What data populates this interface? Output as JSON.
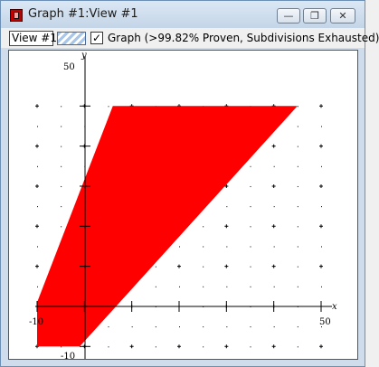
{
  "window": {
    "title": "Graph #1:View #1",
    "minimize_glyph": "—",
    "restore_glyph": "❐",
    "close_glyph": "✕"
  },
  "toolbar": {
    "view_name": "View #1",
    "graph_checked_glyph": "✓",
    "graph_label": "Graph (>99.82% Proven, Subdivisions Exhausted)"
  },
  "graph": {
    "fill_color": "#ff0000",
    "x_axis_label": "x",
    "y_axis_label": "y",
    "x_min_label": "-10",
    "x_max_label": "50",
    "y_max_label": "50",
    "y_min_label": "-10",
    "region_polygon": [
      [
        -10,
        -10
      ],
      [
        -10,
        1
      ],
      [
        6,
        50
      ],
      [
        45,
        50
      ],
      [
        -1,
        -10
      ]
    ]
  }
}
